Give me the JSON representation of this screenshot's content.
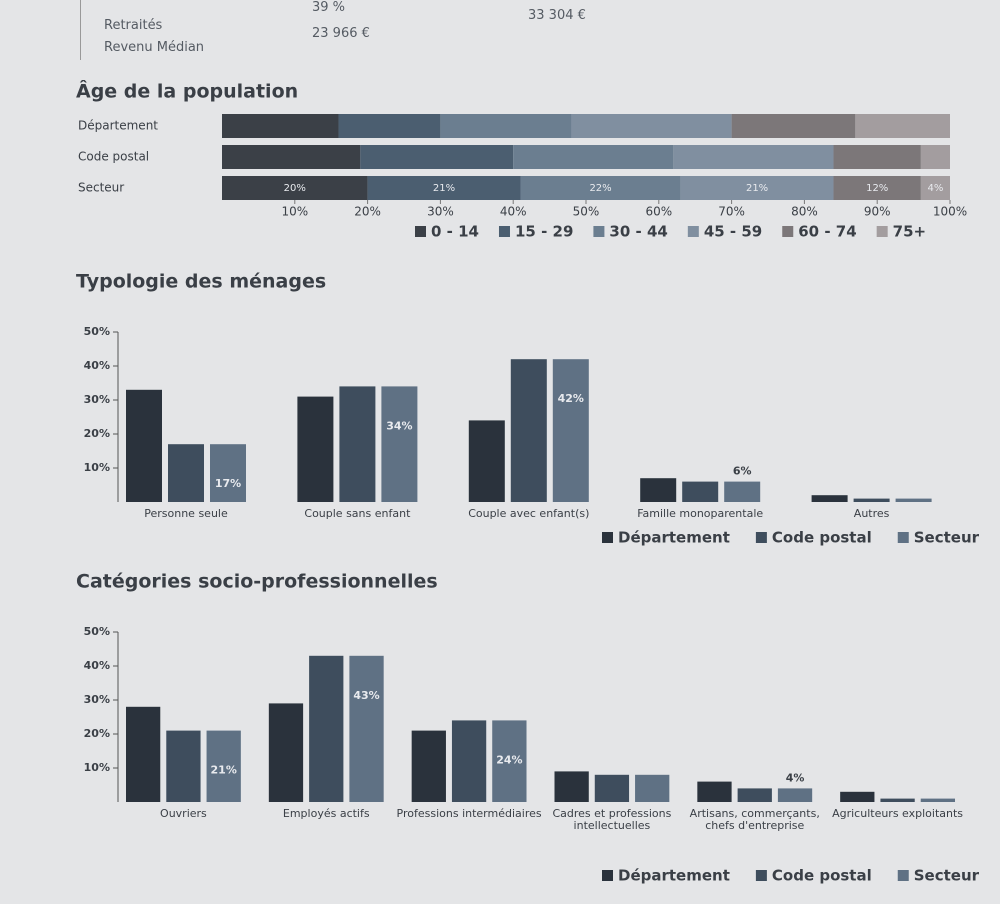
{
  "table": {
    "rows": [
      [
        "Retraités",
        "39 %",
        "33 304 €"
      ],
      [
        "Revenu Médian",
        "23 966 €"
      ]
    ]
  },
  "chart_data": [
    {
      "type": "bar",
      "horizontal": true,
      "stacked": true,
      "title": "Âge de la population",
      "categories": [
        "Département",
        "Code postal",
        "Secteur"
      ],
      "series": [
        {
          "name": "0 - 14",
          "color": "#3b4047",
          "values": [
            16,
            19,
            20
          ],
          "value_labels": [
            null,
            null,
            "20%"
          ]
        },
        {
          "name": "15 - 29",
          "color": "#4b5e70",
          "values": [
            14,
            21,
            21
          ],
          "value_labels": [
            null,
            null,
            "21%"
          ]
        },
        {
          "name": "30 - 44",
          "color": "#6b7e90",
          "values": [
            18,
            22,
            22
          ],
          "value_labels": [
            null,
            null,
            "22%"
          ]
        },
        {
          "name": "45 - 59",
          "color": "#808fa0",
          "values": [
            22,
            22,
            21
          ],
          "value_labels": [
            null,
            null,
            "21%"
          ]
        },
        {
          "name": "60 - 74",
          "color": "#7c7779",
          "values": [
            17,
            12,
            12
          ],
          "value_labels": [
            null,
            null,
            "12%"
          ]
        },
        {
          "name": "75+",
          "color": "#a39d9f",
          "values": [
            13,
            4,
            4
          ],
          "value_labels": [
            null,
            null,
            "4%"
          ]
        }
      ],
      "xlim": [
        0,
        100
      ],
      "xticks": [
        {
          "value": 10,
          "label": "10%"
        },
        {
          "value": 20,
          "label": "20%"
        },
        {
          "value": 30,
          "label": "30%"
        },
        {
          "value": 40,
          "label": "40%"
        },
        {
          "value": 50,
          "label": "50%"
        },
        {
          "value": 60,
          "label": "60%"
        },
        {
          "value": 70,
          "label": "70%"
        },
        {
          "value": 80,
          "label": "80%"
        },
        {
          "value": 90,
          "label": "90%"
        },
        {
          "value": 100,
          "label": "100%"
        }
      ]
    },
    {
      "type": "bar",
      "title": "Typologie des ménages",
      "categories": [
        "Personne seule",
        "Couple sans enfant",
        "Couple avec enfant(s)",
        "Famille monoparentale",
        "Autres"
      ],
      "series": [
        {
          "name": "Département",
          "color": "#2a323c",
          "values": [
            33,
            31,
            24,
            7,
            2
          ]
        },
        {
          "name": "Code postal",
          "color": "#3e4d5d",
          "values": [
            17,
            34,
            42,
            6,
            1
          ]
        },
        {
          "name": "Secteur",
          "color": "#5f7184",
          "values": [
            17,
            34,
            42,
            6,
            1
          ],
          "value_labels": [
            "17%",
            "34%",
            "42%",
            "6%",
            null
          ]
        }
      ],
      "ylim": [
        0,
        50
      ],
      "yticks": [
        {
          "value": 10,
          "label": "10%"
        },
        {
          "value": 20,
          "label": "20%"
        },
        {
          "value": 30,
          "label": "30%"
        },
        {
          "value": 40,
          "label": "40%"
        },
        {
          "value": 50,
          "label": "50%"
        }
      ]
    },
    {
      "type": "bar",
      "title": "Catégories socio-professionnelles",
      "categories": [
        "Ouvriers",
        "Employés actifs",
        "Professions intermédiaires",
        "Cadres et professions intellectuelles",
        "Artisans, commerçants, chefs d'entreprise",
        "Agriculteurs exploitants"
      ],
      "series": [
        {
          "name": "Département",
          "color": "#2a323c",
          "values": [
            28,
            29,
            21,
            9,
            6,
            3
          ]
        },
        {
          "name": "Code postal",
          "color": "#3e4d5d",
          "values": [
            21,
            43,
            24,
            8,
            4,
            1
          ]
        },
        {
          "name": "Secteur",
          "color": "#5f7184",
          "values": [
            21,
            43,
            24,
            8,
            4,
            1
          ],
          "value_labels": [
            "21%",
            "43%",
            "24%",
            "8%",
            "4%",
            null
          ]
        }
      ],
      "ylim": [
        0,
        50
      ],
      "yticks": [
        {
          "value": 10,
          "label": "10%"
        },
        {
          "value": 20,
          "label": "20%"
        },
        {
          "value": 30,
          "label": "30%"
        },
        {
          "value": 40,
          "label": "40%"
        },
        {
          "value": 50,
          "label": "50%"
        }
      ]
    }
  ]
}
